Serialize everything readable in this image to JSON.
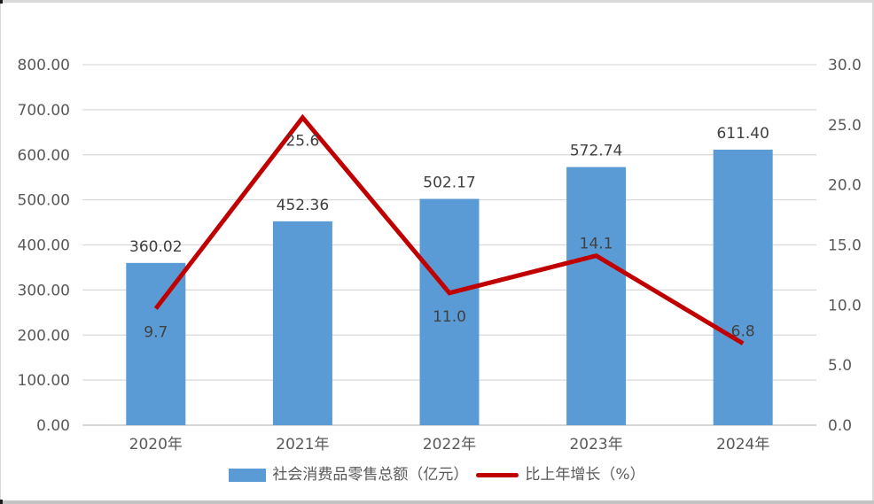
{
  "chart_data": {
    "type": "combo",
    "title": "",
    "categories": [
      "2020年",
      "2021年",
      "2022年",
      "2023年",
      "2024年"
    ],
    "series": [
      {
        "name": "社会消费品零售总额（亿元）",
        "type": "bar",
        "axis": "left",
        "values": [
          360.02,
          452.36,
          502.17,
          572.74,
          611.4
        ],
        "labels": [
          "360.02",
          "452.36",
          "502.17",
          "572.74",
          "611.40"
        ]
      },
      {
        "name": "比上年增长（%）",
        "type": "line",
        "axis": "right",
        "values": [
          9.7,
          25.6,
          11.0,
          14.1,
          6.8
        ],
        "labels": [
          "9.7",
          "25.6",
          "11.0",
          "14.1",
          "6.8"
        ],
        "label_positions": [
          "below",
          "below",
          "below",
          "above",
          "above"
        ]
      }
    ],
    "left_axis": {
      "min": 0,
      "max": 800,
      "step": 100,
      "tick_labels": [
        "800.00",
        "700.00",
        "600.00",
        "500.00",
        "400.00",
        "300.00",
        "200.00",
        "100.00",
        "0.00"
      ]
    },
    "right_axis": {
      "min": 0,
      "max": 30,
      "step": 5,
      "tick_labels": [
        "30.0",
        "25.0",
        "20.0",
        "15.0",
        "10.0",
        "5.0",
        "0.0"
      ]
    },
    "grid": true,
    "legend_position": "bottom"
  },
  "legend": {
    "bar_label": "社会消费品零售总额（亿元）",
    "line_label": "比上年增长（%）"
  },
  "colors": {
    "bar": "#5B9BD5",
    "line": "#C00000",
    "grid": "#D9D9D9",
    "baseline": "#BFBFBF",
    "axis_text": "#595959",
    "data_label": "#404040"
  }
}
